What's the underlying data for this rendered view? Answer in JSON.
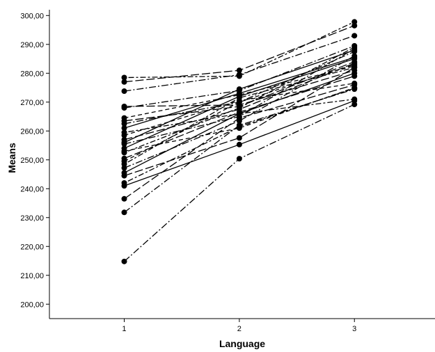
{
  "chart_data": {
    "type": "line",
    "title": "",
    "xlabel": "Language",
    "ylabel": "Means",
    "x": [
      1,
      2,
      3
    ],
    "xtick_labels": [
      "1",
      "2",
      "3"
    ],
    "ylim": [
      195,
      302
    ],
    "xlim": [
      0.35,
      3.7
    ],
    "yticks": [
      200,
      210,
      220,
      230,
      240,
      250,
      260,
      270,
      280,
      290,
      300
    ],
    "ytick_labels": [
      "200,00",
      "210,00",
      "220,00",
      "230,00",
      "240,00",
      "250,00",
      "260,00",
      "270,00",
      "280,00",
      "290,00",
      "300,00"
    ],
    "grid": false,
    "legend": "none",
    "marker": "filled-circle",
    "series": [
      {
        "values": [
          214.8,
          250.4,
          269.2
        ],
        "dash": "dashdot"
      },
      {
        "values": [
          231.8,
          262.0,
          274.5
        ],
        "dash": "dashdot"
      },
      {
        "values": [
          236.5,
          264.5,
          276.0
        ],
        "dash": "longdash"
      },
      {
        "values": [
          241.0,
          255.3,
          270.5
        ],
        "dash": "solid"
      },
      {
        "values": [
          242.0,
          261.5,
          274.8
        ],
        "dash": "dotdash"
      },
      {
        "values": [
          244.5,
          257.6,
          282.0
        ],
        "dash": "longdash"
      },
      {
        "values": [
          245.5,
          266.0,
          280.0
        ],
        "dash": "solid"
      },
      {
        "values": [
          247.2,
          263.5,
          286.0
        ],
        "dash": "dashdot"
      },
      {
        "values": [
          249.5,
          270.0,
          283.0
        ],
        "dash": "shortdash"
      },
      {
        "values": [
          250.5,
          266.5,
          279.0
        ],
        "dash": "longdash"
      },
      {
        "values": [
          252.5,
          268.0,
          289.0
        ],
        "dash": "dotdash"
      },
      {
        "values": [
          254.0,
          272.0,
          285.0
        ],
        "dash": "solid"
      },
      {
        "values": [
          255.5,
          265.0,
          288.5
        ],
        "dash": "dashdot"
      },
      {
        "values": [
          257.0,
          267.5,
          283.5
        ],
        "dash": "longdash"
      },
      {
        "values": [
          258.5,
          270.5,
          276.5
        ],
        "dash": "shortdash"
      },
      {
        "values": [
          259.5,
          266.0,
          271.0
        ],
        "dash": "dotdash"
      },
      {
        "values": [
          261.0,
          273.0,
          285.5
        ],
        "dash": "solid"
      },
      {
        "values": [
          262.5,
          270.0,
          287.5
        ],
        "dash": "dashdot"
      },
      {
        "values": [
          263.5,
          268.5,
          284.0
        ],
        "dash": "longdash"
      },
      {
        "values": [
          264.5,
          272.5,
          282.5
        ],
        "dash": "shortdash"
      },
      {
        "values": [
          268.0,
          274.0,
          289.5
        ],
        "dash": "dashdot"
      },
      {
        "values": [
          268.5,
          269.0,
          281.0
        ],
        "dash": "longdash"
      },
      {
        "values": [
          273.8,
          279.5,
          293.0
        ],
        "dash": "dashdot"
      },
      {
        "values": [
          277.0,
          281.0,
          296.5
        ],
        "dash": "longdash"
      },
      {
        "values": [
          278.5,
          279.0,
          297.8
        ],
        "dash": "dotdash"
      },
      {
        "values": [
          256.0,
          274.5,
          288.0
        ],
        "dash": "solid"
      },
      {
        "values": [
          253.0,
          261.0,
          275.0
        ],
        "dash": "shortdash"
      },
      {
        "values": [
          248.5,
          271.5,
          282.0
        ],
        "dash": "dotdash"
      }
    ]
  }
}
